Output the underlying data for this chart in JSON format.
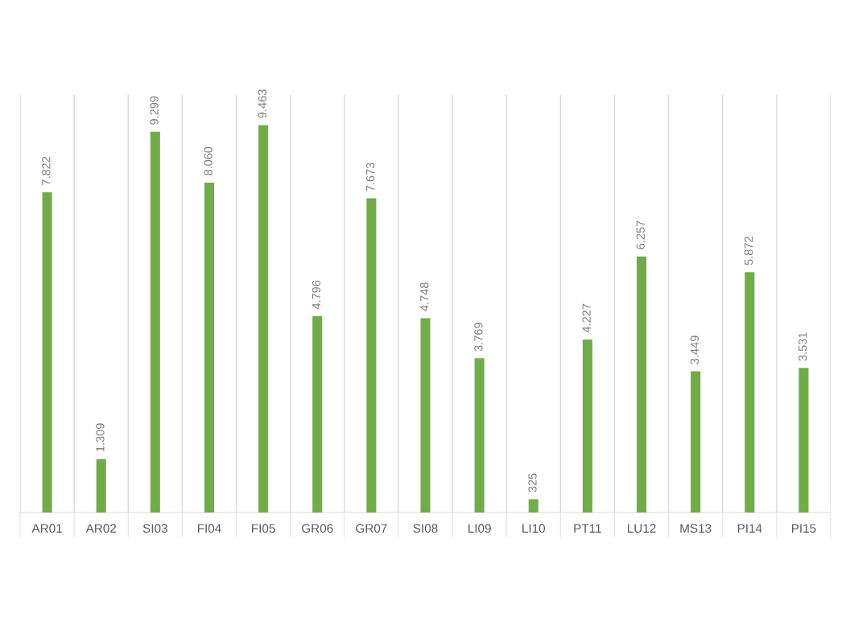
{
  "chart_data": {
    "type": "bar",
    "categories": [
      "AR01",
      "AR02",
      "SI03",
      "FI04",
      "FI05",
      "GR06",
      "GR07",
      "SI08",
      "LI09",
      "LI10",
      "PT11",
      "LU12",
      "MS13",
      "PI14",
      "PI15"
    ],
    "values": [
      7822,
      1309,
      9299,
      8060,
      9463,
      4796,
      7673,
      4748,
      3769,
      325,
      4227,
      6257,
      3449,
      5872,
      3531
    ],
    "value_labels": [
      "7.822",
      "1.309",
      "9.299",
      "8.060",
      "9.463",
      "4.796",
      "7.673",
      "4.748",
      "3.769",
      "325",
      "4.227",
      "6.257",
      "3.449",
      "5.872",
      "3.531"
    ],
    "color": "#70ad47",
    "ylim": [
      0,
      10200
    ],
    "grid": "x",
    "tick_labels": "x",
    "legend": false
  }
}
